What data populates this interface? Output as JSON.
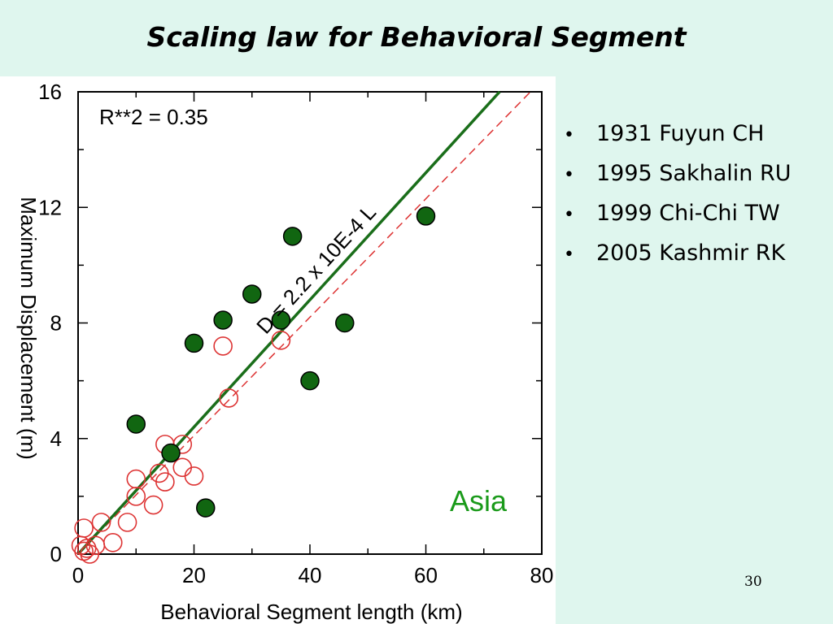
{
  "slide": {
    "title": "Scaling law for Behavioral Segment",
    "number": "30"
  },
  "bullets": [
    "1931 Fuyun CH",
    "1995 Sakhalin RU",
    "1999 Chi-Chi TW",
    "2005 Kashmir RK"
  ],
  "colors": {
    "background": "#dff6ee",
    "fit_line": "#1a6e1a",
    "filled_marker": "#116611",
    "open_marker": "#dd3333",
    "region_label": "#1a9a1a"
  },
  "chart_data": {
    "type": "scatter",
    "xlabel": "Behavioral Segment length (km)",
    "ylabel": "Maximum Displacement (m)",
    "xlim": [
      0,
      80
    ],
    "ylim": [
      0,
      16
    ],
    "xticks": [
      0,
      20,
      40,
      60,
      80
    ],
    "yticks": [
      0,
      4,
      8,
      12,
      16
    ],
    "grid": false,
    "annotations": {
      "r_squared": "R**2 = 0.35",
      "fit_equation": "D = 2.2 x 10E-4 L",
      "region": "Asia"
    },
    "fit_line": {
      "slope": 0.22,
      "intercept": 0
    },
    "reference_line": {
      "slope": 0.205,
      "intercept": 0,
      "style": "dashed"
    },
    "series": [
      {
        "marker": "filled-circle",
        "points": [
          [
            10,
            4.5
          ],
          [
            16,
            3.5
          ],
          [
            20,
            7.3
          ],
          [
            22,
            1.6
          ],
          [
            25,
            8.1
          ],
          [
            30,
            9.0
          ],
          [
            35,
            8.1
          ],
          [
            37,
            11.0
          ],
          [
            40,
            6.0
          ],
          [
            46,
            8.0
          ],
          [
            60,
            11.7
          ]
        ]
      },
      {
        "marker": "open-circle",
        "points": [
          [
            0.5,
            0.3
          ],
          [
            1,
            0.1
          ],
          [
            1.5,
            0.2
          ],
          [
            2,
            0.0
          ],
          [
            1,
            0.9
          ],
          [
            3,
            0.3
          ],
          [
            4,
            1.1
          ],
          [
            6,
            0.4
          ],
          [
            8.5,
            1.1
          ],
          [
            10,
            2.0
          ],
          [
            10,
            2.6
          ],
          [
            13,
            1.7
          ],
          [
            14,
            2.8
          ],
          [
            15,
            2.5
          ],
          [
            15,
            3.8
          ],
          [
            18,
            3.0
          ],
          [
            18,
            3.8
          ],
          [
            20,
            2.7
          ],
          [
            25,
            7.2
          ],
          [
            26,
            5.4
          ],
          [
            35,
            7.4
          ]
        ]
      }
    ]
  }
}
